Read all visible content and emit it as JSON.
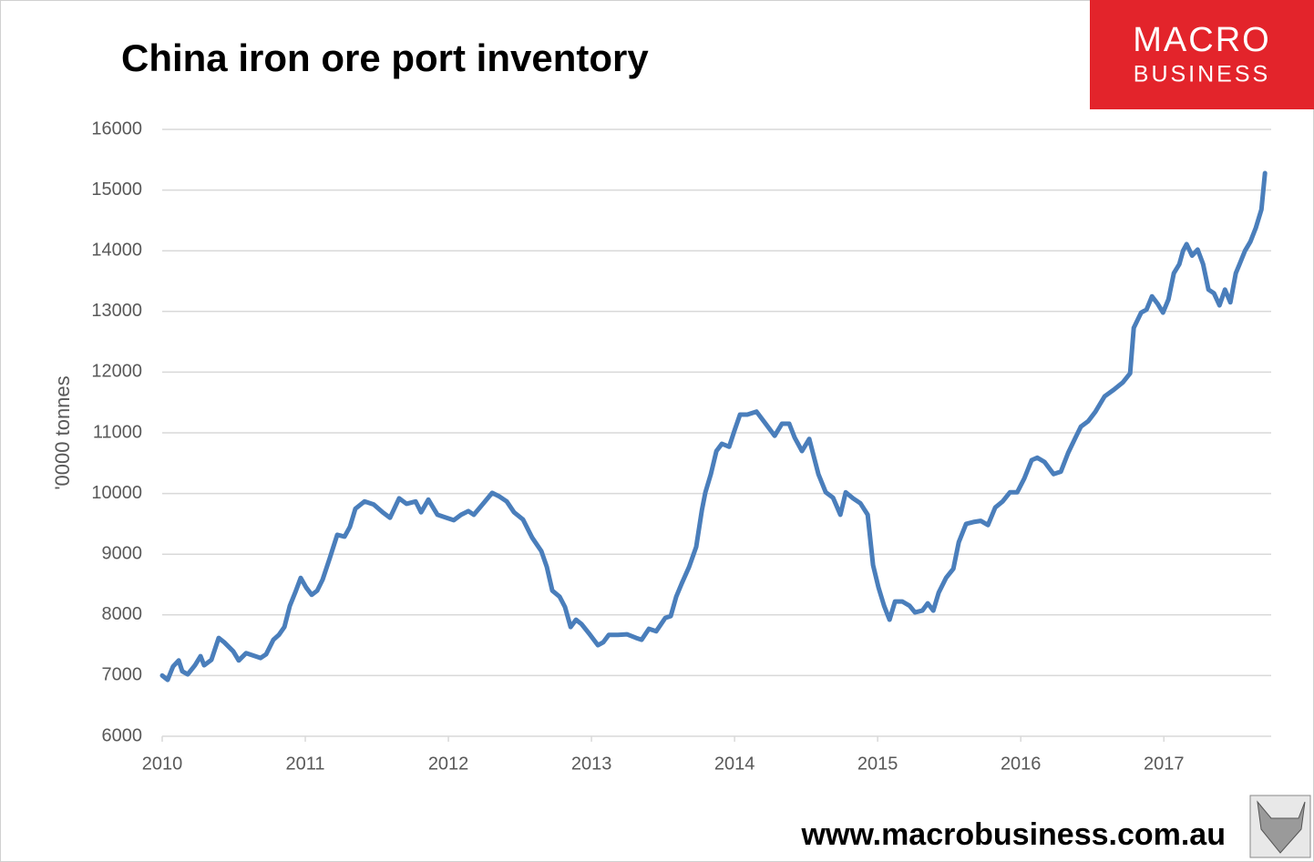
{
  "chart_data": {
    "type": "line",
    "title": "China iron ore port inventory",
    "y_label": "'0000 tonnes",
    "annotations": [
      "MACRO",
      "BUSINESS",
      "www.macrobusiness.com.au"
    ],
    "color": "#4a7ebb",
    "grid": true,
    "xlim": [
      2010,
      2017.75
    ],
    "xticks": [
      2010,
      2011,
      2012,
      2013,
      2014,
      2015,
      2016,
      2017
    ],
    "ylim": [
      6000,
      16000
    ],
    "yticks": [
      6000,
      7000,
      8000,
      9000,
      10000,
      11000,
      12000,
      13000,
      14000,
      15000,
      16000
    ],
    "x": [
      2010.0,
      2010.038,
      2010.076,
      2010.115,
      2010.14,
      2010.178,
      2010.229,
      2010.268,
      2010.293,
      2010.344,
      2010.395,
      2010.433,
      2010.497,
      2010.535,
      2010.586,
      2010.65,
      2010.688,
      2010.726,
      2010.777,
      2010.815,
      2010.854,
      2010.892,
      2010.93,
      2010.968,
      2011.006,
      2011.045,
      2011.083,
      2011.121,
      2011.172,
      2011.223,
      2011.274,
      2011.312,
      2011.35,
      2011.414,
      2011.478,
      2011.541,
      2011.592,
      2011.656,
      2011.707,
      2011.771,
      2011.809,
      2011.86,
      2011.924,
      2011.987,
      2012.038,
      2012.089,
      2012.14,
      2012.178,
      2012.242,
      2012.306,
      2012.357,
      2012.408,
      2012.459,
      2012.522,
      2012.586,
      2012.65,
      2012.688,
      2012.726,
      2012.777,
      2012.815,
      2012.854,
      2012.892,
      2012.93,
      2012.981,
      2013.045,
      2013.083,
      2013.121,
      2013.185,
      2013.248,
      2013.312,
      2013.35,
      2013.401,
      2013.452,
      2013.516,
      2013.554,
      2013.592,
      2013.631,
      2013.682,
      2013.732,
      2013.771,
      2013.796,
      2013.834,
      2013.873,
      2013.911,
      2013.962,
      2014.0,
      2014.038,
      2014.089,
      2014.153,
      2014.217,
      2014.28,
      2014.331,
      2014.382,
      2014.42,
      2014.471,
      2014.522,
      2014.586,
      2014.637,
      2014.688,
      2014.739,
      2014.777,
      2014.828,
      2014.879,
      2014.93,
      2014.968,
      2015.006,
      2015.045,
      2015.083,
      2015.121,
      2015.172,
      2015.223,
      2015.261,
      2015.312,
      2015.35,
      2015.389,
      2015.427,
      2015.478,
      2015.529,
      2015.567,
      2015.618,
      2015.669,
      2015.72,
      2015.771,
      2015.822,
      2015.873,
      2015.924,
      2015.975,
      2016.025,
      2016.076,
      2016.115,
      2016.166,
      2016.229,
      2016.28,
      2016.331,
      2016.382,
      2016.42,
      2016.471,
      2016.522,
      2016.586,
      2016.65,
      2016.713,
      2016.764,
      2016.79,
      2016.841,
      2016.879,
      2016.917,
      2016.955,
      2016.994,
      2017.032,
      2017.07,
      2017.108,
      2017.134,
      2017.159,
      2017.197,
      2017.236,
      2017.274,
      2017.312,
      2017.35,
      2017.389,
      2017.427,
      2017.465,
      2017.503,
      2017.529,
      2017.567,
      2017.605,
      2017.643,
      2017.682,
      2017.707
    ],
    "values": [
      7000,
      6930,
      7150,
      7250,
      7070,
      7020,
      7170,
      7320,
      7170,
      7260,
      7620,
      7550,
      7400,
      7250,
      7370,
      7320,
      7290,
      7350,
      7590,
      7670,
      7800,
      8150,
      8370,
      8610,
      8450,
      8330,
      8400,
      8580,
      8940,
      9320,
      9290,
      9450,
      9750,
      9870,
      9820,
      9690,
      9600,
      9920,
      9830,
      9870,
      9690,
      9900,
      9650,
      9600,
      9560,
      9650,
      9710,
      9650,
      9830,
      10010,
      9950,
      9870,
      9690,
      9570,
      9270,
      9050,
      8790,
      8400,
      8300,
      8130,
      7800,
      7920,
      7850,
      7700,
      7500,
      7550,
      7670,
      7670,
      7680,
      7620,
      7590,
      7770,
      7730,
      7950,
      7980,
      8300,
      8520,
      8790,
      9120,
      9720,
      10020,
      10320,
      10700,
      10820,
      10770,
      11040,
      11300,
      11300,
      11350,
      11150,
      10950,
      11150,
      11150,
      10920,
      10700,
      10900,
      10320,
      10020,
      9930,
      9650,
      10020,
      9920,
      9840,
      9650,
      8820,
      8450,
      8150,
      7920,
      8220,
      8220,
      8150,
      8040,
      8070,
      8190,
      8070,
      8370,
      8610,
      8760,
      9200,
      9500,
      9530,
      9550,
      9480,
      9770,
      9870,
      10020,
      10020,
      10250,
      10550,
      10590,
      10520,
      10320,
      10360,
      10670,
      10920,
      11100,
      11190,
      11350,
      11600,
      11710,
      11830,
      11980,
      12730,
      12980,
      13030,
      13250,
      13130,
      12980,
      13200,
      13630,
      13780,
      14000,
      14110,
      13920,
      14020,
      13780,
      13360,
      13300,
      13100,
      13360,
      13150,
      13630,
      13780,
      14000,
      14150,
      14380,
      14680,
      15280
    ]
  }
}
